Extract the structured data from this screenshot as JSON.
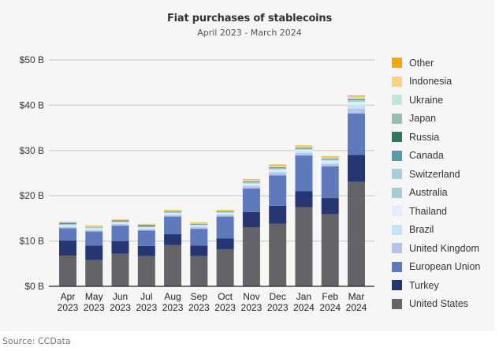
{
  "chart_data": {
    "type": "bar",
    "stacked": true,
    "title": "Fiat purchases of stablecoins",
    "subtitle": "April 2023 - March 2024",
    "xlabel": "",
    "ylabel": "",
    "ylim": [
      0,
      50
    ],
    "yticks": [
      0,
      10,
      20,
      30,
      40,
      50
    ],
    "ytick_labels": [
      "$0 B",
      "$10 B",
      "$20 B",
      "$30 B",
      "$40 B",
      "$50 B"
    ],
    "grid": true,
    "legend_position": "right",
    "categories": [
      [
        "Apr",
        "2023"
      ],
      [
        "May",
        "2023"
      ],
      [
        "Jun",
        "2023"
      ],
      [
        "Jul",
        "2023"
      ],
      [
        "Aug",
        "2023"
      ],
      [
        "Sep",
        "2023"
      ],
      [
        "Oct",
        "2023"
      ],
      [
        "Nov",
        "2023"
      ],
      [
        "Dec",
        "2023"
      ],
      [
        "Jan",
        "2024"
      ],
      [
        "Feb",
        "2024"
      ],
      [
        "Mar",
        "2024"
      ]
    ],
    "series": [
      {
        "name": "United States",
        "color": "#646368",
        "values": [
          6.8,
          5.8,
          7.2,
          6.7,
          9.1,
          6.7,
          8.2,
          13.0,
          13.8,
          17.5,
          15.9,
          23.1
        ]
      },
      {
        "name": "Turkey",
        "color": "#263672",
        "values": [
          3.3,
          3.2,
          2.8,
          2.2,
          2.4,
          2.3,
          2.4,
          3.4,
          4.0,
          3.5,
          3.6,
          5.9
        ]
      },
      {
        "name": "European Union",
        "color": "#5f79bd",
        "values": [
          2.7,
          3.1,
          3.4,
          3.4,
          3.9,
          3.7,
          4.8,
          5.2,
          6.7,
          7.9,
          7.0,
          9.2
        ]
      },
      {
        "name": "United Kingdom",
        "color": "#b7c3e8",
        "values": [
          0.3,
          0.3,
          0.3,
          0.3,
          0.35,
          0.35,
          0.4,
          0.5,
          0.6,
          0.5,
          0.5,
          1.0
        ]
      },
      {
        "name": "Brazil",
        "color": "#c3e4f3",
        "values": [
          0.25,
          0.25,
          0.25,
          0.25,
          0.25,
          0.25,
          0.25,
          0.3,
          0.35,
          0.4,
          0.4,
          0.9
        ]
      },
      {
        "name": "Thailand",
        "color": "#e3eef8",
        "values": [
          0.2,
          0.2,
          0.2,
          0.2,
          0.2,
          0.2,
          0.2,
          0.3,
          0.35,
          0.35,
          0.35,
          0.6
        ]
      },
      {
        "name": "Australia",
        "color": "#a8cdd0",
        "values": [
          0.1,
          0.1,
          0.1,
          0.1,
          0.1,
          0.1,
          0.1,
          0.15,
          0.15,
          0.15,
          0.15,
          0.25
        ]
      },
      {
        "name": "Switzerland",
        "color": "#a9cfd9",
        "values": [
          0.1,
          0.1,
          0.1,
          0.1,
          0.1,
          0.1,
          0.1,
          0.15,
          0.15,
          0.15,
          0.15,
          0.25
        ]
      },
      {
        "name": "Canada",
        "color": "#5a9aa6",
        "values": [
          0.05,
          0.05,
          0.05,
          0.05,
          0.05,
          0.05,
          0.05,
          0.05,
          0.05,
          0.05,
          0.05,
          0.05
        ]
      },
      {
        "name": "Russia",
        "color": "#2e7562",
        "values": [
          0.2,
          0.0,
          0.15,
          0.2,
          0.05,
          0.05,
          0.05,
          0.05,
          0.1,
          0.05,
          0.05,
          0.05
        ]
      },
      {
        "name": "Japan",
        "color": "#97beb1",
        "values": [
          0.05,
          0.05,
          0.05,
          0.05,
          0.05,
          0.05,
          0.05,
          0.1,
          0.1,
          0.1,
          0.1,
          0.15
        ]
      },
      {
        "name": "Ukraine",
        "color": "#c2e5d8",
        "values": [
          0.05,
          0.05,
          0.05,
          0.05,
          0.05,
          0.05,
          0.05,
          0.1,
          0.1,
          0.1,
          0.1,
          0.15
        ]
      },
      {
        "name": "Indonesia",
        "color": "#f7d283",
        "values": [
          0.1,
          0.2,
          0.05,
          0.05,
          0.2,
          0.15,
          0.15,
          0.2,
          0.25,
          0.2,
          0.2,
          0.35
        ]
      },
      {
        "name": "Other",
        "color": "#f5a800",
        "values": [
          0.05,
          0.05,
          0.05,
          0.05,
          0.1,
          0.1,
          0.1,
          0.15,
          0.2,
          0.15,
          0.15,
          0.2
        ]
      }
    ],
    "totals_approx": [
      14.2,
      13.5,
      14.7,
      13.7,
      16.8,
      14.0,
      16.9,
      23.5,
      26.9,
      31.1,
      28.8,
      42.2
    ]
  },
  "legend": [
    {
      "label": "Other",
      "color": "#f5a800"
    },
    {
      "label": "Indonesia",
      "color": "#f7d283"
    },
    {
      "label": "Ukraine",
      "color": "#c2e5d8"
    },
    {
      "label": "Japan",
      "color": "#97beb1"
    },
    {
      "label": "Russia",
      "color": "#2e7562"
    },
    {
      "label": "Canada",
      "color": "#5a9aa6"
    },
    {
      "label": "Switzerland",
      "color": "#a9cfd9"
    },
    {
      "label": "Australia",
      "color": "#a8cdd0"
    },
    {
      "label": "Thailand",
      "color": "#e3eef8"
    },
    {
      "label": "Brazil",
      "color": "#c3e4f3"
    },
    {
      "label": "United Kingdom",
      "color": "#b7c3e8"
    },
    {
      "label": "European Union",
      "color": "#5f79bd"
    },
    {
      "label": "Turkey",
      "color": "#263672"
    },
    {
      "label": "United States",
      "color": "#646368"
    }
  ],
  "source": "Source: CCData"
}
